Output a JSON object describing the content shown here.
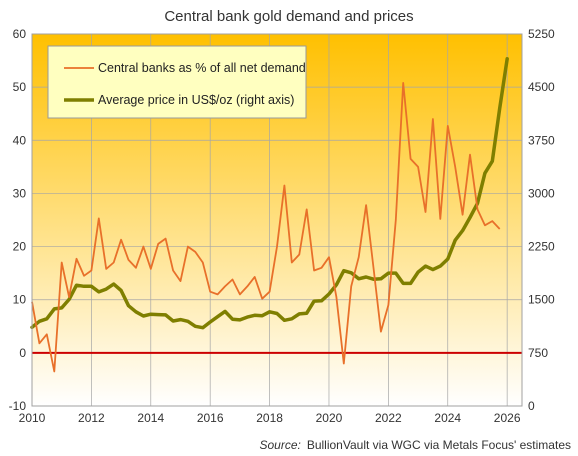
{
  "chart_data": {
    "type": "line",
    "title": "Central bank gold demand and prices",
    "source_label": "Source:",
    "source_text": "BullionVault via WGC via Metals Focus' estimates",
    "x_ticks": [
      "2010",
      "2012",
      "2014",
      "2016",
      "2018",
      "2020",
      "2022",
      "2024",
      "2026"
    ],
    "xlim": [
      2010,
      2026.5
    ],
    "y_left": {
      "ticks": [
        "-10",
        "0",
        "10",
        "20",
        "30",
        "40",
        "50",
        "60"
      ],
      "lim": [
        -10,
        60
      ]
    },
    "y_right": {
      "ticks": [
        "0",
        "750",
        "1500",
        "2250",
        "3000",
        "3750",
        "4500",
        "5250"
      ],
      "lim": [
        0,
        5250
      ]
    },
    "zero_line": {
      "value": 0,
      "color": "#cc0000"
    },
    "background_gradient": [
      "#ffc000",
      "#ffffff"
    ],
    "grid": true,
    "legend_position": "top-left",
    "series": [
      {
        "name": "Central banks as % of all net demand",
        "axis": "left",
        "color": "#e8702a",
        "points": [
          [
            2010.0,
            9.6
          ],
          [
            2010.25,
            1.8
          ],
          [
            2010.5,
            3.5
          ],
          [
            2010.75,
            -3.5
          ],
          [
            2011.0,
            17.0
          ],
          [
            2011.25,
            10.5
          ],
          [
            2011.5,
            17.7
          ],
          [
            2011.75,
            14.5
          ],
          [
            2012.0,
            15.5
          ],
          [
            2012.25,
            25.3
          ],
          [
            2012.5,
            15.8
          ],
          [
            2012.75,
            17.0
          ],
          [
            2013.0,
            21.3
          ],
          [
            2013.25,
            17.5
          ],
          [
            2013.5,
            16.0
          ],
          [
            2013.75,
            20.0
          ],
          [
            2014.0,
            15.8
          ],
          [
            2014.25,
            20.5
          ],
          [
            2014.5,
            21.5
          ],
          [
            2014.75,
            15.5
          ],
          [
            2015.0,
            13.5
          ],
          [
            2015.25,
            20.0
          ],
          [
            2015.5,
            19.0
          ],
          [
            2015.75,
            17.0
          ],
          [
            2016.0,
            11.5
          ],
          [
            2016.25,
            11.0
          ],
          [
            2016.5,
            12.5
          ],
          [
            2016.75,
            13.8
          ],
          [
            2017.0,
            11.0
          ],
          [
            2017.25,
            12.5
          ],
          [
            2017.5,
            14.3
          ],
          [
            2017.75,
            10.2
          ],
          [
            2018.0,
            11.5
          ],
          [
            2018.25,
            20.0
          ],
          [
            2018.5,
            31.5
          ],
          [
            2018.75,
            17.0
          ],
          [
            2019.0,
            18.5
          ],
          [
            2019.25,
            27.0
          ],
          [
            2019.5,
            15.5
          ],
          [
            2019.75,
            16.0
          ],
          [
            2020.0,
            18.0
          ],
          [
            2020.25,
            10.5
          ],
          [
            2020.5,
            -2.0
          ],
          [
            2020.75,
            12.5
          ],
          [
            2021.0,
            18.0
          ],
          [
            2021.25,
            27.8
          ],
          [
            2021.5,
            16.0
          ],
          [
            2021.75,
            4.0
          ],
          [
            2022.0,
            9.0
          ],
          [
            2022.25,
            25.0
          ],
          [
            2022.5,
            50.8
          ],
          [
            2022.75,
            36.5
          ],
          [
            2023.0,
            35.0
          ],
          [
            2023.25,
            26.5
          ],
          [
            2023.5,
            44.0
          ],
          [
            2023.75,
            25.2
          ],
          [
            2024.0,
            42.7
          ],
          [
            2024.25,
            35.0
          ],
          [
            2024.5,
            26.0
          ],
          [
            2024.75,
            37.3
          ],
          [
            2025.0,
            27.0
          ],
          [
            2025.25,
            24.0
          ],
          [
            2025.5,
            24.8
          ],
          [
            2025.75,
            23.3
          ]
        ]
      },
      {
        "name": "Average price in US$/oz (right axis)",
        "axis": "right",
        "color": "#7f7f00",
        "points": [
          [
            2010.0,
            1110
          ],
          [
            2010.25,
            1195
          ],
          [
            2010.5,
            1230
          ],
          [
            2010.75,
            1370
          ],
          [
            2011.0,
            1385
          ],
          [
            2011.25,
            1505
          ],
          [
            2011.5,
            1705
          ],
          [
            2011.75,
            1690
          ],
          [
            2012.0,
            1690
          ],
          [
            2012.25,
            1610
          ],
          [
            2012.5,
            1650
          ],
          [
            2012.75,
            1720
          ],
          [
            2013.0,
            1630
          ],
          [
            2013.25,
            1415
          ],
          [
            2013.5,
            1330
          ],
          [
            2013.75,
            1270
          ],
          [
            2014.0,
            1295
          ],
          [
            2014.25,
            1290
          ],
          [
            2014.5,
            1285
          ],
          [
            2014.75,
            1200
          ],
          [
            2015.0,
            1220
          ],
          [
            2015.25,
            1195
          ],
          [
            2015.5,
            1125
          ],
          [
            2015.75,
            1105
          ],
          [
            2016.0,
            1185
          ],
          [
            2016.25,
            1260
          ],
          [
            2016.5,
            1335
          ],
          [
            2016.75,
            1225
          ],
          [
            2017.0,
            1215
          ],
          [
            2017.25,
            1255
          ],
          [
            2017.5,
            1280
          ],
          [
            2017.75,
            1275
          ],
          [
            2018.0,
            1330
          ],
          [
            2018.25,
            1305
          ],
          [
            2018.5,
            1210
          ],
          [
            2018.75,
            1230
          ],
          [
            2019.0,
            1300
          ],
          [
            2019.25,
            1310
          ],
          [
            2019.5,
            1480
          ],
          [
            2019.75,
            1485
          ],
          [
            2020.0,
            1580
          ],
          [
            2020.25,
            1710
          ],
          [
            2020.5,
            1910
          ],
          [
            2020.75,
            1880
          ],
          [
            2021.0,
            1795
          ],
          [
            2021.25,
            1820
          ],
          [
            2021.5,
            1790
          ],
          [
            2021.75,
            1795
          ],
          [
            2022.0,
            1875
          ],
          [
            2022.25,
            1875
          ],
          [
            2022.5,
            1730
          ],
          [
            2022.75,
            1730
          ],
          [
            2023.0,
            1890
          ],
          [
            2023.25,
            1975
          ],
          [
            2023.5,
            1925
          ],
          [
            2023.75,
            1975
          ],
          [
            2024.0,
            2075
          ],
          [
            2024.25,
            2340
          ],
          [
            2024.5,
            2475
          ],
          [
            2024.75,
            2660
          ],
          [
            2025.0,
            2860
          ],
          [
            2025.25,
            3285
          ],
          [
            2025.5,
            3455
          ],
          [
            2025.75,
            4200
          ],
          [
            2026.0,
            4900
          ]
        ]
      }
    ]
  }
}
